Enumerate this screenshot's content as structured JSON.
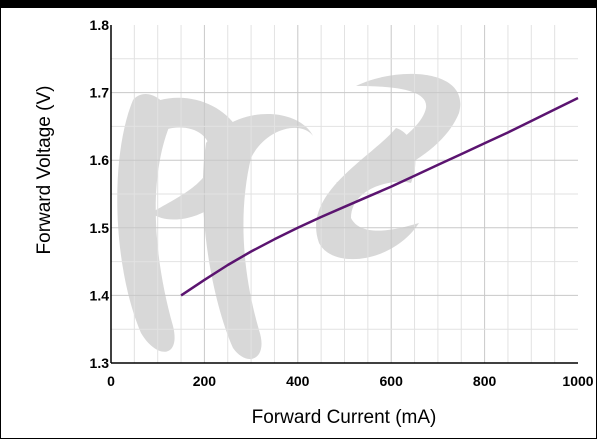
{
  "chart_data": {
    "type": "line",
    "xlabel": "Forward Current (mA)",
    "ylabel": "Forward Voltage (V)",
    "xlim": [
      0,
      1000
    ],
    "ylim": [
      1.3,
      1.8
    ],
    "x_ticks": [
      "0",
      "200",
      "400",
      "600",
      "800",
      "1000"
    ],
    "y_ticks": [
      "1.3",
      "1.4",
      "1.5",
      "1.6",
      "1.7",
      "1.8"
    ],
    "grid": true,
    "series": [
      {
        "color": "#5b1470",
        "x": [
          150,
          200,
          250,
          300,
          350,
          400,
          450,
          500,
          550,
          600,
          650,
          700,
          750,
          800,
          850,
          900,
          950,
          1000
        ],
        "y": [
          1.4,
          1.423,
          1.445,
          1.465,
          1.483,
          1.5,
          1.516,
          1.531,
          1.546,
          1.561,
          1.577,
          1.593,
          1.609,
          1.625,
          1.641,
          1.658,
          1.675,
          1.692
        ]
      }
    ],
    "watermark": {
      "text": "Pre",
      "color": "#d8d8d8"
    }
  }
}
